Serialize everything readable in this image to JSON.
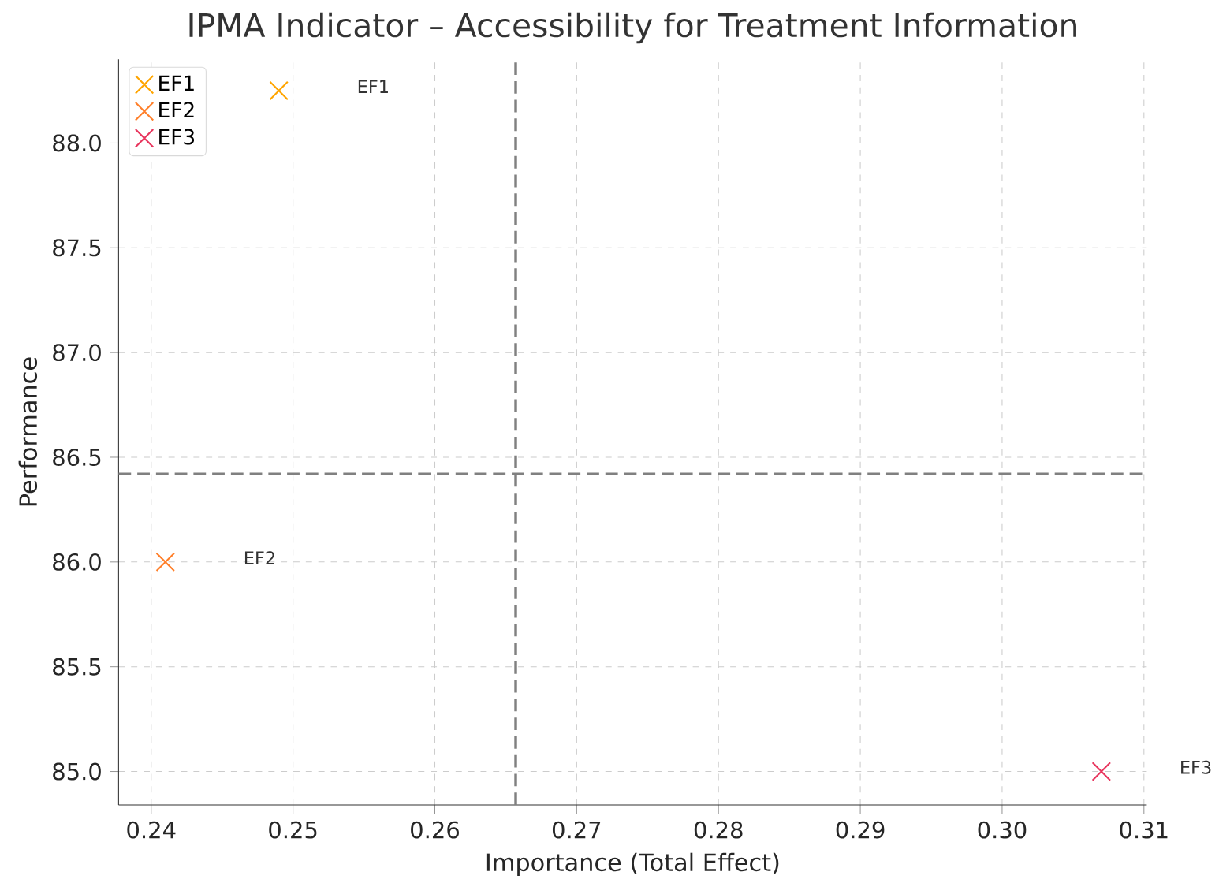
{
  "chart_data": {
    "type": "scatter",
    "title": "IPMA Indicator – Accessibility for Treatment Information",
    "xlabel": "Importance (Total Effect)",
    "ylabel": "Performance",
    "series": [
      {
        "name": "EF1",
        "color": "#ffa500",
        "x": [
          0.249
        ],
        "values": [
          88.25
        ]
      },
      {
        "name": "EF2",
        "color": "#ff7f2a",
        "x": [
          0.241
        ],
        "values": [
          86.0
        ]
      },
      {
        "name": "EF3",
        "color": "#e8365e",
        "x": [
          0.307
        ],
        "values": [
          85.0
        ]
      }
    ],
    "annotations": [
      "EF1",
      "EF2",
      "EF3"
    ],
    "ref_lines": [
      {
        "axis": "x",
        "value": 0.2657,
        "color": "#808080",
        "line_style": "dashed"
      },
      {
        "axis": "y",
        "value": 86.42,
        "color": "#808080",
        "line_style": "dashed"
      }
    ],
    "xlim": [
      0.2377,
      0.3102
    ],
    "ylim": [
      84.84,
      88.4
    ],
    "xticks": [
      0.24,
      0.25,
      0.26,
      0.27,
      0.28,
      0.29,
      {
        "value": 0.3,
        "label": "0.30"
      },
      0.31
    ],
    "yticks": [
      {
        "value": 85,
        "label": "85.0"
      },
      {
        "value": 85.5,
        "label": "85.5"
      },
      {
        "value": 86,
        "label": "86.0"
      },
      {
        "value": 86.5,
        "label": "86.5"
      },
      {
        "value": 87,
        "label": "87.0"
      },
      {
        "value": 87.5,
        "label": "87.5"
      },
      {
        "value": 88,
        "label": "88.0"
      }
    ],
    "grid": true,
    "legend": "top left",
    "marker": "cross"
  }
}
